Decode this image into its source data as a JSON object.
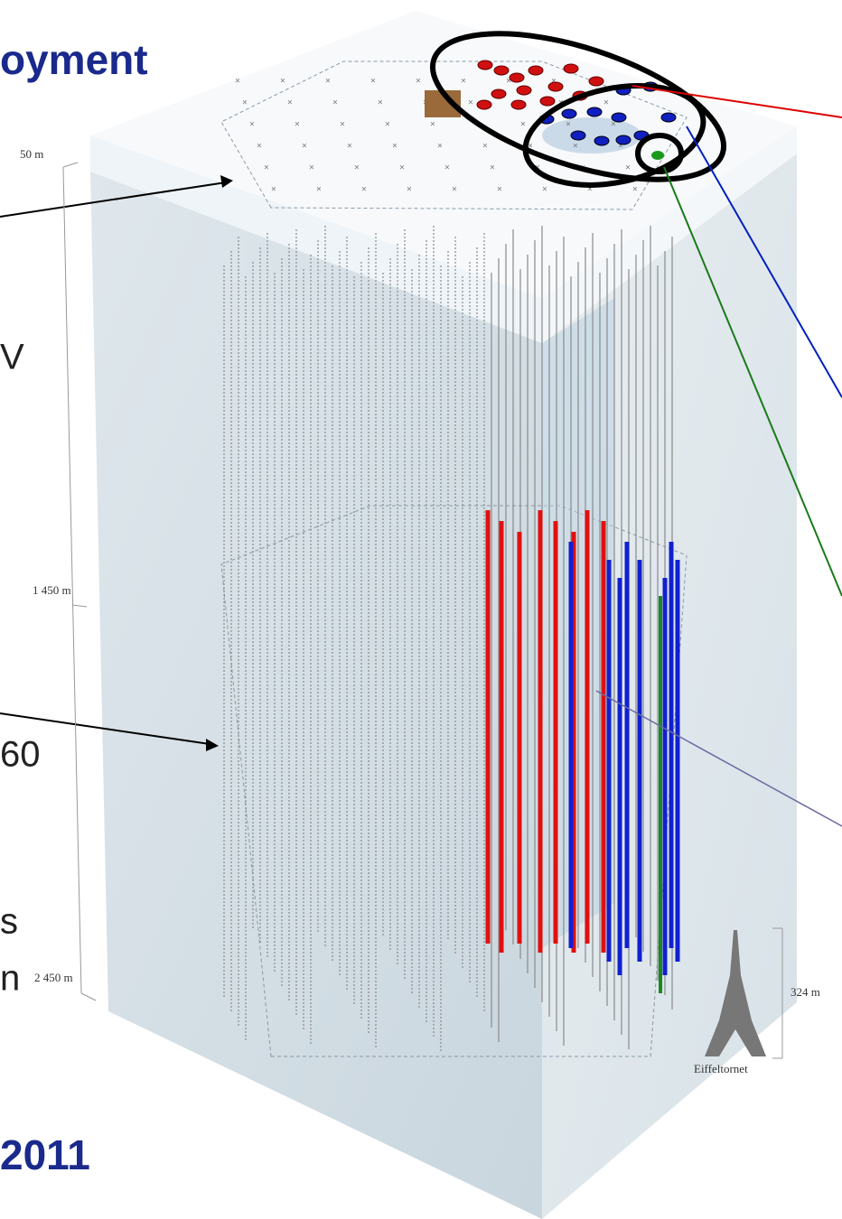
{
  "title": "oyment",
  "left_fragments": [
    "V",
    "60",
    "s",
    "n"
  ],
  "year": "2011",
  "depth_labels": [
    "50 m",
    "1 450 m",
    "2 450 m"
  ],
  "scale": {
    "height": "324 m",
    "label": "Eiffeltornet"
  }
}
